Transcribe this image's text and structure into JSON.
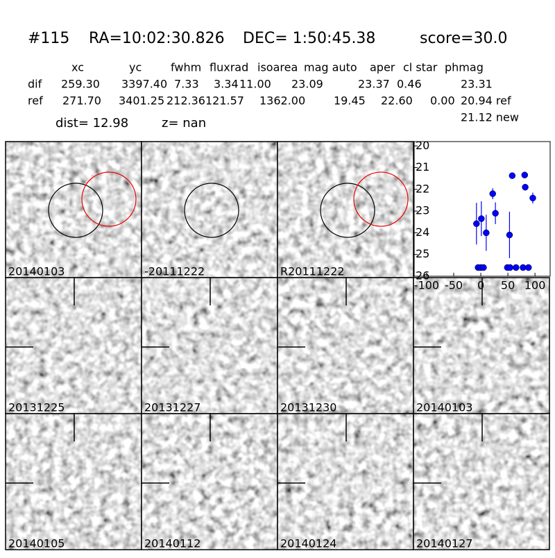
{
  "header": {
    "id": "#115",
    "ra": "RA=10:02:30.826",
    "dec": "DEC= 1:50:45.38",
    "score": "score=30.0"
  },
  "table": {
    "columns": [
      "xc",
      "yc",
      "fwhm",
      "fluxrad",
      "isoarea",
      "mag auto",
      "aper",
      "cl star",
      "phmag"
    ],
    "rows": [
      [
        "dif",
        "259.30",
        "3397.40",
        "7.33",
        "3.34",
        "11.00",
        "23.09",
        "23.37",
        "0.46",
        "23.31"
      ],
      [
        "ref",
        "271.70",
        "3401.25",
        "212.36",
        "121.57",
        "1362.00",
        "19.45",
        "22.60",
        "0.00",
        "20.94 ref"
      ]
    ],
    "extra": "21.12 new"
  },
  "dist": "dist= 12.98",
  "z": "z=   nan",
  "panels": [
    "20140103",
    "-20111222",
    "R20111222",
    "20131225",
    "20131227",
    "20131230",
    "20140103",
    "20140105",
    "20140112",
    "20140124",
    "20140127"
  ],
  "chart_data": {
    "type": "scatter",
    "color": "#0000ff",
    "x": [
      -8,
      1,
      10,
      22,
      27,
      53,
      58,
      81,
      82,
      96,
      -5,
      0,
      5,
      49,
      54,
      65,
      78,
      88
    ],
    "values": [
      23.58,
      23.35,
      24.0,
      22.2,
      23.1,
      24.1,
      21.37,
      21.34,
      21.9,
      22.4,
      25.6,
      25.6,
      25.6,
      25.6,
      25.6,
      25.6,
      25.6,
      25.6
    ],
    "errors": [
      0.96,
      0.8,
      0.83,
      0.25,
      0.5,
      1.07,
      0.1,
      0.1,
      0.15,
      0.25,
      null,
      null,
      null,
      null,
      null,
      null,
      null,
      null
    ],
    "xlim": [
      -123,
      128
    ],
    "ylim": [
      19.8,
      26
    ],
    "y_inverted": true,
    "xticks": [
      -100,
      -50,
      0,
      50,
      100
    ],
    "yticks": [
      20,
      21,
      22,
      23,
      24,
      25,
      26
    ]
  }
}
